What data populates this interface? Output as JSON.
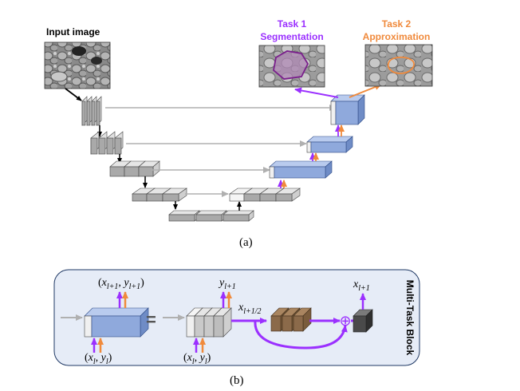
{
  "part_a": {
    "input_label": "Input image",
    "task1": {
      "title": "Task 1",
      "subtitle": "Segmentation"
    },
    "task2": {
      "title": "Task 2",
      "subtitle": "Approximation"
    },
    "caption": "(a)"
  },
  "part_b": {
    "block_label": "Multi-Task Block",
    "equals": "=",
    "caption": "(b)",
    "formulas": {
      "out_left": {
        "lp": "(",
        "x": "x",
        "xs": "l+1",
        "c": ", ",
        "y": "y",
        "ys": "l+1",
        "rp": ")"
      },
      "in_left": {
        "lp": "(",
        "x": "x",
        "xs": "l",
        "c": ", ",
        "y": "y",
        "ys": "l",
        "rp": ")"
      },
      "y_out": {
        "y": "y",
        "ys": "l+1"
      },
      "x_half": {
        "x": "x",
        "xs": "l+1/2"
      },
      "in_mid": {
        "lp": "(",
        "x": "x",
        "xs": "l",
        "c": ", ",
        "y": "y",
        "ys": "l",
        "rp": ")"
      },
      "x_out": {
        "x": "x",
        "xs": "l+1"
      }
    },
    "plus_symbol": "⊕"
  },
  "colors": {
    "purple": "#9b30ff",
    "orange": "#f08a3c",
    "blue_block": "#8fa9dc",
    "brown_block": "#8b6a4a",
    "dark_block": "#4a4a4a",
    "panel_bg": "#e6ecf7",
    "panel_border": "#1f3864",
    "task1_color": "#9b30ff",
    "task2_color": "#f08a3c"
  }
}
